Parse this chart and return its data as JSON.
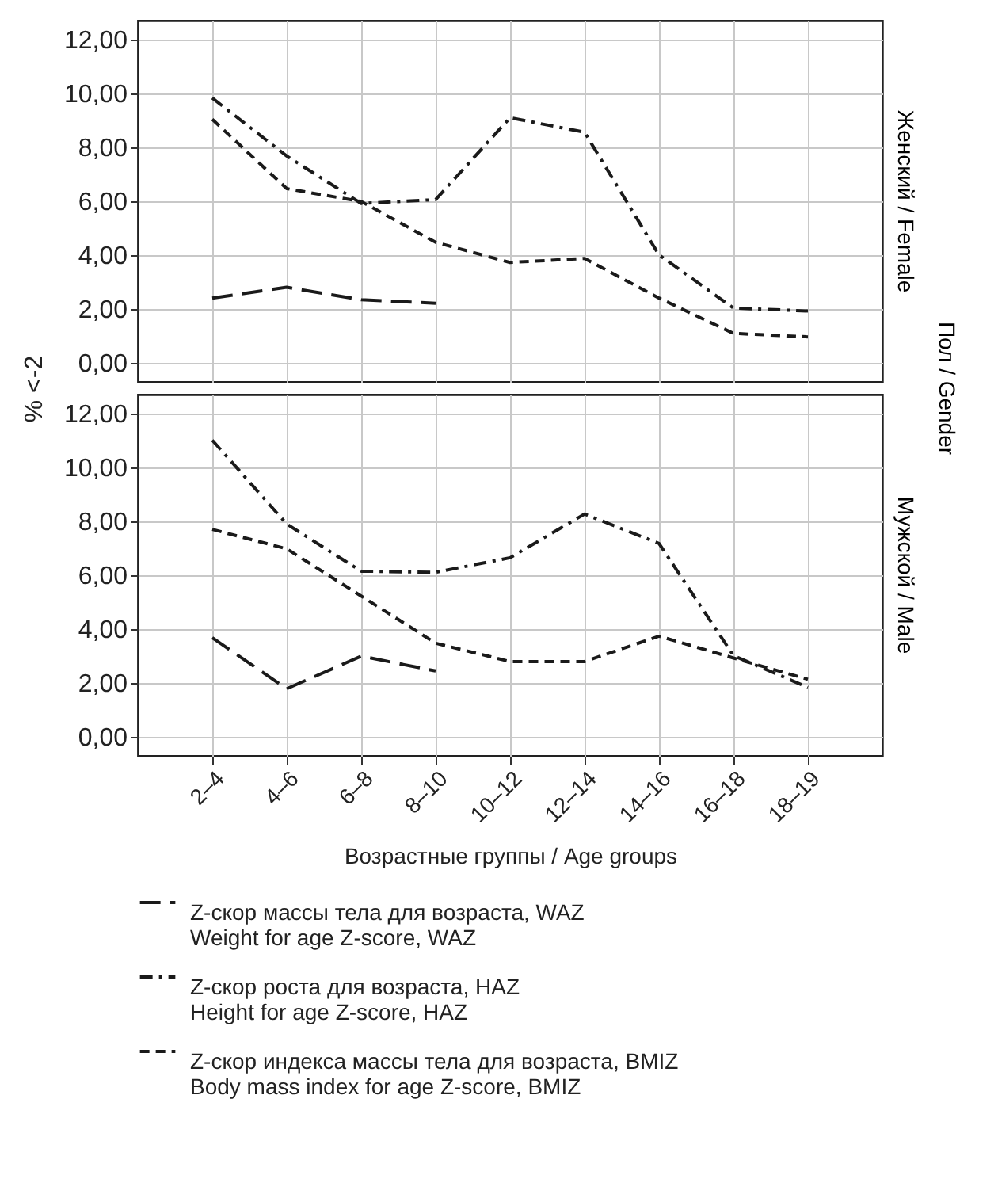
{
  "chart_data": [
    {
      "type": "line",
      "title": "Женский / Female",
      "ylabel": "% <-2",
      "annotations": [
        "Пол / Gender"
      ],
      "categories": [
        "2–4",
        "4–6",
        "6–8",
        "8–10",
        "10–12",
        "12–14",
        "14–16",
        "16–18",
        "18–19"
      ],
      "series": [
        {
          "name": "Z-скор массы тела для возраста, WAZ\nWeight for age Z-score, WAZ",
          "color": "#1a1a1a",
          "line_style": "longdash",
          "values": [
            2.41,
            2.81,
            2.35,
            2.22,
            null,
            null,
            null,
            null,
            null
          ]
        },
        {
          "name": "Z-скор роста для возраста, HAZ\nHeight for age Z-score, HAZ",
          "color": "#1a1a1a",
          "line_style": "dashdot",
          "values": [
            9.83,
            7.68,
            5.92,
            6.06,
            9.1,
            8.56,
            4.01,
            2.04,
            1.93
          ]
        },
        {
          "name": "Z-скор индекса массы тела для возраста, BMIZ\nBody mass index for age Z-score, BMIZ",
          "color": "#1a1a1a",
          "line_style": "dashed",
          "values": [
            9.04,
            6.47,
            5.99,
            4.48,
            3.73,
            3.88,
            2.41,
            1.1,
            0.97
          ]
        }
      ],
      "ylim": [
        -0.7,
        12.7
      ],
      "yticks": [
        {
          "value": 0,
          "label": "0,00"
        },
        {
          "value": 2,
          "label": "2,00"
        },
        {
          "value": 4,
          "label": "4,00"
        },
        {
          "value": 6,
          "label": "6,00"
        },
        {
          "value": 8,
          "label": "8,00"
        },
        {
          "value": 10,
          "label": "10,00"
        },
        {
          "value": 12,
          "label": "12,00"
        }
      ],
      "grid": true,
      "tick_labels": "y",
      "legend": "bottom"
    },
    {
      "type": "line",
      "title": "Мужской / Male",
      "xlabel": "Возрастные группы / Age groups",
      "categories": [
        "2–4",
        "4–6",
        "6–8",
        "8–10",
        "10–12",
        "12–14",
        "14–16",
        "16–18",
        "18–19"
      ],
      "series": [
        {
          "name": "Z-скор массы тела для возраста, WAZ\nWeight for age Z-score, WAZ",
          "color": "#1a1a1a",
          "line_style": "longdash",
          "values": [
            3.68,
            1.79,
            3.0,
            2.45,
            null,
            null,
            null,
            null,
            null
          ]
        },
        {
          "name": "Z-скор роста для возраста, HAZ\nHeight for age Z-score, HAZ",
          "color": "#1a1a1a",
          "line_style": "dashdot",
          "values": [
            11.01,
            7.9,
            6.15,
            6.11,
            6.65,
            8.27,
            7.18,
            3.02,
            1.84
          ]
        },
        {
          "name": "Z-скор индекса массы тела для возраста, BMIZ\nBody mass index for age Z-score, BMIZ",
          "color": "#1a1a1a",
          "line_style": "dashed",
          "values": [
            7.7,
            6.98,
            5.23,
            3.48,
            2.8,
            2.8,
            3.74,
            2.93,
            2.14
          ]
        }
      ],
      "ylim": [
        -0.7,
        12.7
      ],
      "yticks": [
        {
          "value": 0,
          "label": "0,00"
        },
        {
          "value": 2,
          "label": "2,00"
        },
        {
          "value": 4,
          "label": "4,00"
        },
        {
          "value": 6,
          "label": "6,00"
        },
        {
          "value": 8,
          "label": "8,00"
        },
        {
          "value": 10,
          "label": "10,00"
        },
        {
          "value": 12,
          "label": "12,00"
        }
      ],
      "grid": true,
      "legend": "bottom"
    }
  ]
}
